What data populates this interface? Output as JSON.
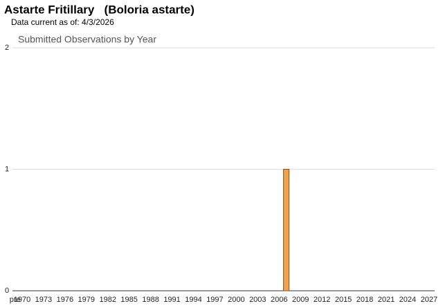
{
  "header": {
    "title": "Astarte Fritillary   (Boloria astarte)",
    "subtitle": "Data current as of: 4/3/2026"
  },
  "chart_data": {
    "type": "bar",
    "title": "Submitted Observations by Year",
    "categories": [
      "pre",
      "1970",
      null,
      null,
      "1973",
      null,
      null,
      "1976",
      null,
      null,
      "1979",
      null,
      null,
      "1982",
      null,
      null,
      "1985",
      null,
      null,
      "1988",
      null,
      null,
      "1991",
      null,
      null,
      "1994",
      null,
      null,
      "1997",
      null,
      null,
      "2000",
      null,
      null,
      "2003",
      null,
      null,
      "2006",
      null,
      null,
      "2009",
      null,
      null,
      "2012",
      null,
      null,
      "2015",
      null,
      null,
      "2018",
      null,
      null,
      "2021",
      null,
      null,
      "2024",
      null,
      null,
      "2027"
    ],
    "values": [
      0,
      0,
      0,
      0,
      0,
      0,
      0,
      0,
      0,
      0,
      0,
      0,
      0,
      0,
      0,
      0,
      0,
      0,
      0,
      0,
      0,
      0,
      0,
      0,
      0,
      0,
      0,
      0,
      0,
      0,
      0,
      0,
      0,
      0,
      0,
      0,
      0,
      0,
      1,
      0,
      0,
      0,
      0,
      0,
      0,
      0,
      0,
      0,
      0,
      0,
      0,
      0,
      0,
      0,
      0,
      0,
      0,
      0,
      0
    ],
    "color": "#f0a24e",
    "ylim": [
      0,
      2
    ],
    "yticks": [
      0,
      1,
      2
    ],
    "grid": true
  }
}
